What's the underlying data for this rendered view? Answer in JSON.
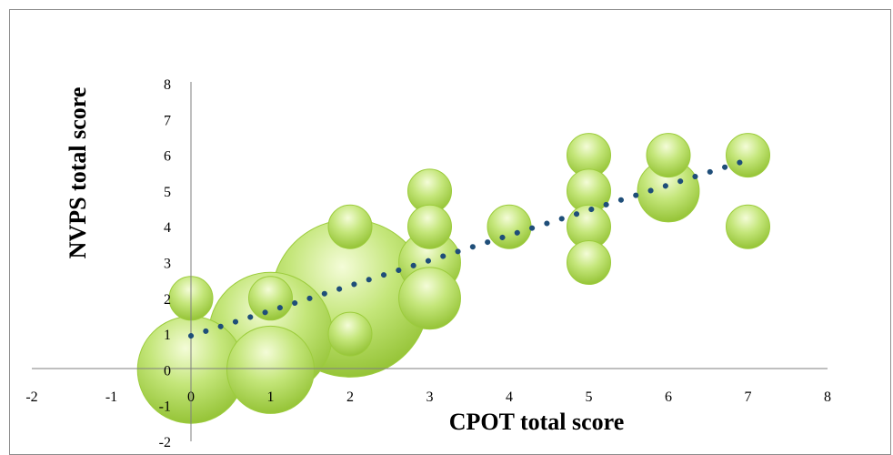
{
  "chart_data": {
    "type": "scatter",
    "subtype": "bubble",
    "title": "",
    "xlabel": "CPOT total score",
    "ylabel": "NVPS total score",
    "xlim": [
      -2,
      8
    ],
    "ylim": [
      -2,
      8
    ],
    "x_ticks": [
      "-2",
      "-1",
      "0",
      "1",
      "2",
      "3",
      "4",
      "5",
      "6",
      "7",
      "8"
    ],
    "y_ticks": [
      "-2",
      "-1",
      "0",
      "1",
      "2",
      "3",
      "4",
      "5",
      "6",
      "7",
      "8"
    ],
    "grid": false,
    "legend": "none",
    "bubble_color": "#b5de5a",
    "trendline": {
      "style": "dotted",
      "color": "#1f4e79",
      "points": [
        [
          0,
          0.95
        ],
        [
          6.9,
          5.8
        ]
      ]
    },
    "points": [
      {
        "x": 0,
        "y": 2,
        "size": 1
      },
      {
        "x": 0,
        "y": 0,
        "size": 6
      },
      {
        "x": 1,
        "y": 2,
        "size": 1
      },
      {
        "x": 1,
        "y": 1,
        "size": 8
      },
      {
        "x": 1,
        "y": 0,
        "size": 4
      },
      {
        "x": 2,
        "y": 4,
        "size": 1
      },
      {
        "x": 2,
        "y": 2,
        "size": 13
      },
      {
        "x": 2,
        "y": 1,
        "size": 1
      },
      {
        "x": 3,
        "y": 5,
        "size": 1
      },
      {
        "x": 3,
        "y": 4,
        "size": 1
      },
      {
        "x": 3,
        "y": 3,
        "size": 2
      },
      {
        "x": 3,
        "y": 2,
        "size": 2
      },
      {
        "x": 4,
        "y": 4,
        "size": 1
      },
      {
        "x": 5,
        "y": 6,
        "size": 1
      },
      {
        "x": 5,
        "y": 5,
        "size": 1
      },
      {
        "x": 5,
        "y": 4,
        "size": 1
      },
      {
        "x": 5,
        "y": 3,
        "size": 1
      },
      {
        "x": 6,
        "y": 6,
        "size": 1
      },
      {
        "x": 6,
        "y": 5,
        "size": 2
      },
      {
        "x": 7,
        "y": 6,
        "size": 1
      },
      {
        "x": 7,
        "y": 4,
        "size": 1
      }
    ]
  }
}
